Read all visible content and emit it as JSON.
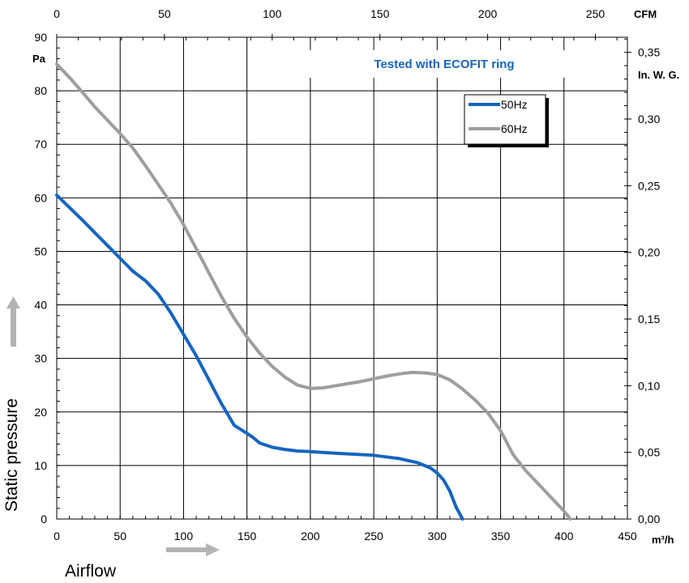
{
  "chart_data": {
    "type": "line",
    "title": "",
    "note": "Tested with ECOFIT ring",
    "note_color": "#1565c0",
    "xlabel": "Airflow",
    "ylabel": "Static pressure",
    "x_unit": "m³/h",
    "y_unit": "Pa",
    "x2_unit": "CFM",
    "y2_unit": "In. W. G.",
    "xlim": [
      0,
      450
    ],
    "ylim": [
      0,
      90
    ],
    "x_ticks": [
      "0",
      "50",
      "100",
      "150",
      "200",
      "250",
      "300",
      "350",
      "400",
      "450"
    ],
    "y_ticks": [
      "0",
      "10",
      "20",
      "30",
      "40",
      "50",
      "60",
      "70",
      "80",
      "90"
    ],
    "x2_ticks": [
      {
        "label": "0",
        "value": 0
      },
      {
        "label": "50",
        "value": 50
      },
      {
        "label": "100",
        "value": 100
      },
      {
        "label": "150",
        "value": 150
      },
      {
        "label": "200",
        "value": 200
      },
      {
        "label": "250",
        "value": 250
      }
    ],
    "y2_ticks": [
      {
        "label": "0,00",
        "value": 0.0
      },
      {
        "label": "0,05",
        "value": 0.05
      },
      {
        "label": "0,10",
        "value": 0.1
      },
      {
        "label": "0,15",
        "value": 0.15
      },
      {
        "label": "0,20",
        "value": 0.2
      },
      {
        "label": "0,25",
        "value": 0.25
      },
      {
        "label": "0,30",
        "value": 0.3
      },
      {
        "label": "0,35",
        "value": 0.35
      }
    ],
    "grid": true,
    "legend_position": "top-right",
    "series": [
      {
        "name": "50Hz",
        "color": "#1565c0",
        "x": [
          0,
          10,
          20,
          30,
          40,
          50,
          60,
          70,
          80,
          90,
          100,
          110,
          120,
          130,
          140,
          150,
          155,
          160,
          170,
          180,
          190,
          200,
          220,
          250,
          270,
          285,
          295,
          300,
          305,
          310,
          315,
          320
        ],
        "y": [
          60.5,
          58.2,
          55.9,
          53.5,
          51.1,
          48.7,
          46.3,
          44.5,
          42.0,
          38.5,
          34.5,
          30.5,
          26.0,
          21.5,
          17.5,
          16.0,
          15.2,
          14.2,
          13.4,
          13.0,
          12.7,
          12.6,
          12.3,
          11.9,
          11.3,
          10.5,
          9.5,
          8.6,
          7.3,
          5.2,
          2.2,
          0.0
        ]
      },
      {
        "name": "60Hz",
        "color": "#9e9e9e",
        "x": [
          0,
          10,
          20,
          30,
          40,
          50,
          60,
          70,
          80,
          90,
          100,
          110,
          120,
          130,
          140,
          150,
          160,
          170,
          180,
          190,
          200,
          210,
          220,
          230,
          240,
          250,
          260,
          270,
          280,
          290,
          300,
          310,
          320,
          330,
          340,
          350,
          360,
          365,
          370,
          380,
          390,
          400,
          405
        ],
        "y": [
          85.0,
          82.5,
          79.8,
          77.0,
          74.5,
          72.0,
          69.3,
          66.0,
          62.5,
          59.0,
          55.0,
          50.5,
          46.0,
          41.5,
          37.5,
          34.0,
          31.0,
          28.5,
          26.5,
          25.0,
          24.4,
          24.5,
          24.9,
          25.3,
          25.7,
          26.2,
          26.7,
          27.1,
          27.4,
          27.3,
          27.0,
          26.0,
          24.3,
          22.2,
          19.8,
          16.5,
          12.0,
          10.5,
          9.0,
          6.5,
          4.0,
          1.5,
          0.0
        ]
      }
    ]
  }
}
